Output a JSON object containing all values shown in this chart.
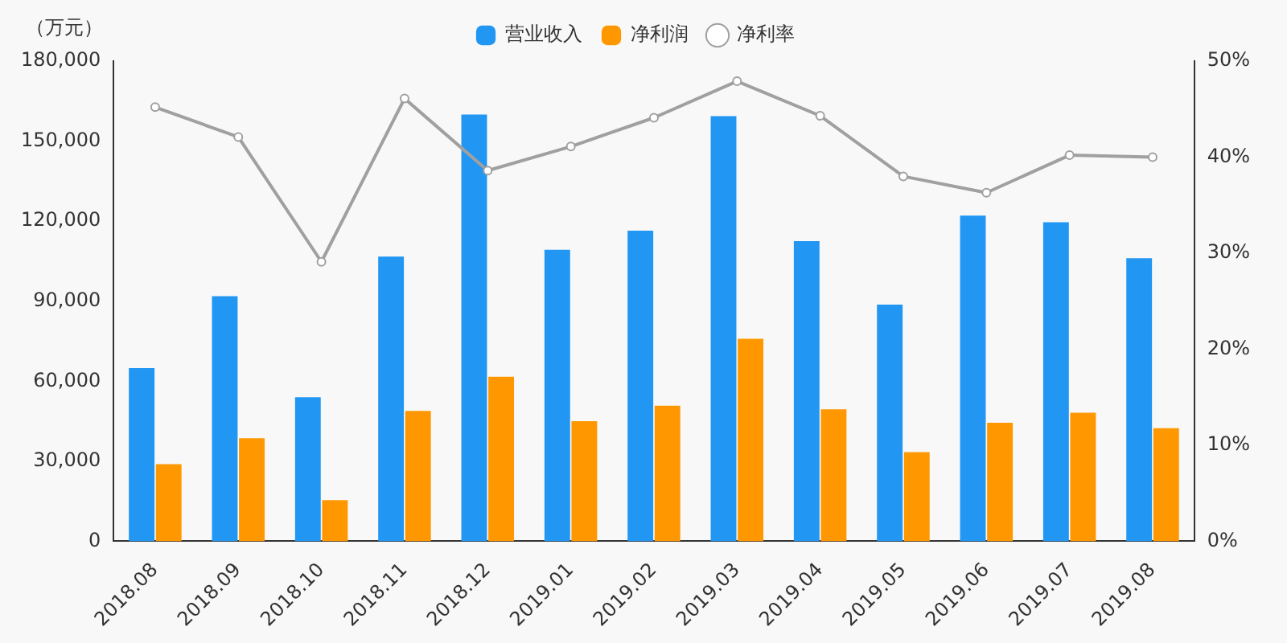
{
  "chart_data": {
    "type": "bar",
    "ylabel": "（万元）",
    "categories": [
      "2018.08",
      "2018.09",
      "2018.10",
      "2018.11",
      "2018.12",
      "2019.01",
      "2019.02",
      "2019.03",
      "2019.04",
      "2019.05",
      "2019.06",
      "2019.07",
      "2019.08"
    ],
    "series": [
      {
        "name": "营业收入",
        "color": "#2196f3",
        "values": [
          64900,
          91900,
          54000,
          106700,
          160000,
          109300,
          116400,
          159400,
          112500,
          88700,
          122100,
          119600,
          106100
        ]
      },
      {
        "name": "净利润",
        "color": "#ff9800",
        "values": [
          28900,
          38600,
          15400,
          48900,
          61700,
          45000,
          50800,
          75900,
          49500,
          33400,
          44400,
          48200,
          42400
        ]
      },
      {
        "name": "净利率",
        "type": "line",
        "axis": "y2",
        "color": "#a0a0a0",
        "marker": "circle",
        "values": [
          45.2,
          42.1,
          29.1,
          46.1,
          38.6,
          41.1,
          44.1,
          47.9,
          44.3,
          38.0,
          36.3,
          40.2,
          40.0
        ]
      }
    ],
    "ylim": [
      0,
      180000
    ],
    "yticks": [
      {
        "value": 0,
        "label": "0"
      },
      {
        "value": 30000,
        "label": "30,000"
      },
      {
        "value": 60000,
        "label": "60,000"
      },
      {
        "value": 90000,
        "label": "90,000"
      },
      {
        "value": 120000,
        "label": "120,000"
      },
      {
        "value": 150000,
        "label": "150,000"
      },
      {
        "value": 180000,
        "label": "180,000"
      }
    ],
    "y2lim": [
      0,
      50
    ],
    "y2ticks": [
      {
        "value": 0,
        "label": "0%"
      },
      {
        "value": 10,
        "label": "10%"
      },
      {
        "value": 20,
        "label": "20%"
      },
      {
        "value": 30,
        "label": "30%"
      },
      {
        "value": 40,
        "label": "40%"
      },
      {
        "value": 50,
        "label": "50%"
      }
    ],
    "grid": false,
    "legend": "top"
  }
}
